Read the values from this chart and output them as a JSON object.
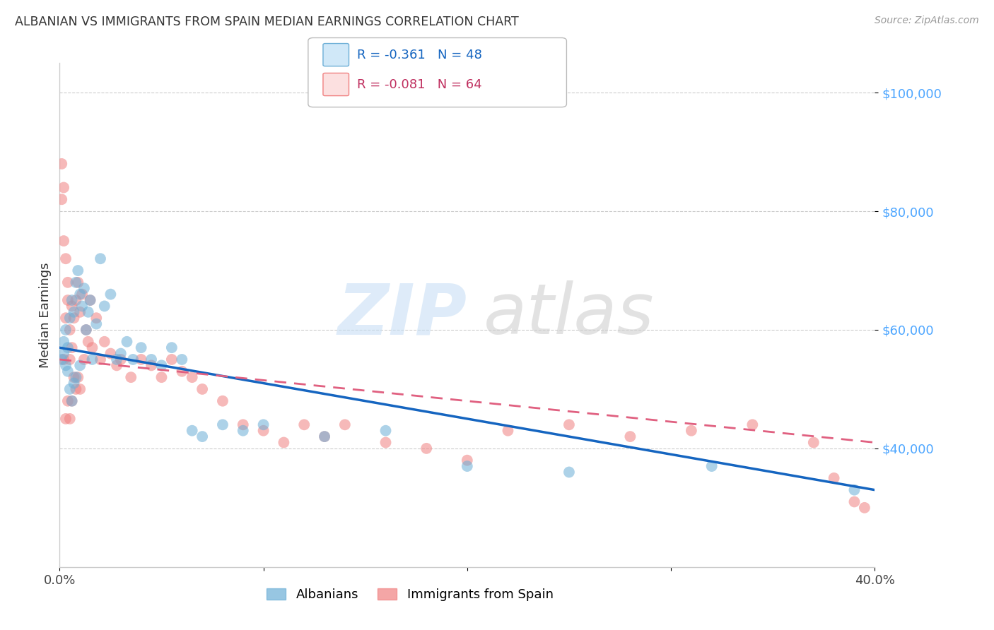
{
  "title": "ALBANIAN VS IMMIGRANTS FROM SPAIN MEDIAN EARNINGS CORRELATION CHART",
  "source": "Source: ZipAtlas.com",
  "ylabel": "Median Earnings",
  "xlim": [
    0.0,
    0.4
  ],
  "ylim": [
    20000,
    105000
  ],
  "yticks": [
    40000,
    60000,
    80000,
    100000
  ],
  "ytick_labels": [
    "$40,000",
    "$60,000",
    "$80,000",
    "$100,000"
  ],
  "ytick_color": "#4da6ff",
  "grid_color": "#cccccc",
  "background_color": "#ffffff",
  "blue_R": -0.361,
  "blue_N": 48,
  "pink_R": -0.081,
  "pink_N": 64,
  "blue_color": "#6baed6",
  "pink_color": "#f08080",
  "blue_line_color": "#1565c0",
  "pink_line_color": "#e06080",
  "legend2_labels": [
    "Albanians",
    "Immigrants from Spain"
  ],
  "blue_x": [
    0.001,
    0.002,
    0.002,
    0.003,
    0.003,
    0.004,
    0.004,
    0.005,
    0.005,
    0.006,
    0.006,
    0.007,
    0.007,
    0.008,
    0.008,
    0.009,
    0.01,
    0.01,
    0.011,
    0.012,
    0.013,
    0.014,
    0.015,
    0.016,
    0.018,
    0.02,
    0.022,
    0.025,
    0.028,
    0.03,
    0.033,
    0.036,
    0.04,
    0.045,
    0.05,
    0.055,
    0.06,
    0.065,
    0.07,
    0.08,
    0.09,
    0.1,
    0.13,
    0.16,
    0.2,
    0.25,
    0.32,
    0.39
  ],
  "blue_y": [
    55000,
    58000,
    56000,
    60000,
    54000,
    57000,
    53000,
    62000,
    50000,
    65000,
    48000,
    63000,
    51000,
    68000,
    52000,
    70000,
    66000,
    54000,
    64000,
    67000,
    60000,
    63000,
    65000,
    55000,
    61000,
    72000,
    64000,
    66000,
    55000,
    56000,
    58000,
    55000,
    57000,
    55000,
    54000,
    57000,
    55000,
    43000,
    42000,
    44000,
    43000,
    44000,
    42000,
    43000,
    37000,
    36000,
    37000,
    33000
  ],
  "pink_x": [
    0.001,
    0.001,
    0.002,
    0.002,
    0.002,
    0.003,
    0.003,
    0.003,
    0.004,
    0.004,
    0.004,
    0.005,
    0.005,
    0.005,
    0.006,
    0.006,
    0.006,
    0.007,
    0.007,
    0.008,
    0.008,
    0.009,
    0.009,
    0.01,
    0.01,
    0.011,
    0.012,
    0.013,
    0.014,
    0.015,
    0.016,
    0.018,
    0.02,
    0.022,
    0.025,
    0.028,
    0.03,
    0.035,
    0.04,
    0.045,
    0.05,
    0.055,
    0.06,
    0.065,
    0.07,
    0.08,
    0.09,
    0.1,
    0.11,
    0.12,
    0.13,
    0.14,
    0.16,
    0.18,
    0.2,
    0.22,
    0.25,
    0.28,
    0.31,
    0.34,
    0.37,
    0.38,
    0.39,
    0.395
  ],
  "pink_y": [
    88000,
    82000,
    84000,
    75000,
    55000,
    72000,
    62000,
    45000,
    68000,
    65000,
    48000,
    60000,
    55000,
    45000,
    64000,
    57000,
    48000,
    62000,
    52000,
    65000,
    50000,
    68000,
    52000,
    63000,
    50000,
    66000,
    55000,
    60000,
    58000,
    65000,
    57000,
    62000,
    55000,
    58000,
    56000,
    54000,
    55000,
    52000,
    55000,
    54000,
    52000,
    55000,
    53000,
    52000,
    50000,
    48000,
    44000,
    43000,
    41000,
    44000,
    42000,
    44000,
    41000,
    40000,
    38000,
    43000,
    44000,
    42000,
    43000,
    44000,
    41000,
    35000,
    31000,
    30000
  ],
  "blue_line_x0": 0.0,
  "blue_line_x1": 0.4,
  "blue_line_y0": 57000,
  "blue_line_y1": 33000,
  "pink_line_x0": 0.0,
  "pink_line_x1": 0.4,
  "pink_line_y0": 55000,
  "pink_line_y1": 41000
}
